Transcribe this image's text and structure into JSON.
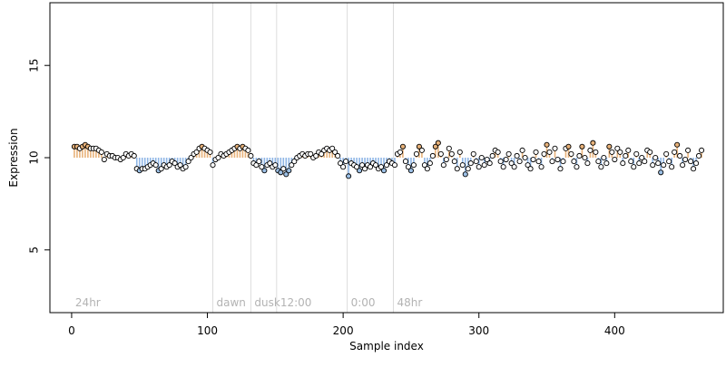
{
  "chart_data": {
    "type": "scatter",
    "title": "",
    "xlabel": "Sample index",
    "ylabel": "Expression",
    "xlim": [
      -16,
      480
    ],
    "ylim": [
      1.6,
      18.4
    ],
    "x_ticks": [
      0,
      100,
      200,
      300,
      400
    ],
    "y_ticks": [
      5,
      10,
      15
    ],
    "grid": false,
    "colors": {
      "point_fill_default": "#ffffff",
      "point_fill_high": "#e8b27a",
      "point_fill_low": "#9cc0e6",
      "deviation_above": "#e8b27a",
      "deviation_below": "#8fb6e6",
      "phase_line": "#dcdcdc",
      "phase_label": "#b3b3b3"
    },
    "phase_markers": [
      {
        "x": 0,
        "label": "24hr"
      },
      {
        "x": 104,
        "label": "dawn"
      },
      {
        "x": 132,
        "label": "dusk"
      },
      {
        "x": 151,
        "label": "12:00"
      },
      {
        "x": 203,
        "label": "0:00"
      },
      {
        "x": 237,
        "label": "48hr"
      }
    ],
    "reference_y": 10,
    "series": [
      {
        "points": [
          [
            2,
            10.6
          ],
          [
            4,
            10.6
          ],
          [
            6,
            10.5
          ],
          [
            8,
            10.6
          ],
          [
            10,
            10.7
          ],
          [
            12,
            10.6
          ],
          [
            14,
            10.5
          ],
          [
            16,
            10.5
          ],
          [
            18,
            10.5
          ],
          [
            20,
            10.4
          ],
          [
            22,
            10.3
          ],
          [
            24,
            9.9
          ],
          [
            26,
            10.2
          ],
          [
            28,
            10.1
          ],
          [
            30,
            10.1
          ],
          [
            32,
            10.0
          ],
          [
            34,
            10.0
          ],
          [
            36,
            9.9
          ],
          [
            38,
            10.0
          ],
          [
            40,
            10.2
          ],
          [
            42,
            10.1
          ],
          [
            44,
            10.2
          ],
          [
            46,
            10.1
          ],
          [
            48,
            9.4
          ],
          [
            50,
            9.3
          ],
          [
            52,
            9.4
          ],
          [
            54,
            9.4
          ],
          [
            56,
            9.5
          ],
          [
            58,
            9.6
          ],
          [
            60,
            9.7
          ],
          [
            62,
            9.6
          ],
          [
            64,
            9.3
          ],
          [
            66,
            9.4
          ],
          [
            68,
            9.6
          ],
          [
            70,
            9.5
          ],
          [
            72,
            9.6
          ],
          [
            74,
            9.8
          ],
          [
            76,
            9.7
          ],
          [
            78,
            9.5
          ],
          [
            80,
            9.6
          ],
          [
            82,
            9.4
          ],
          [
            84,
            9.5
          ],
          [
            86,
            9.8
          ],
          [
            88,
            10.0
          ],
          [
            90,
            10.2
          ],
          [
            92,
            10.3
          ],
          [
            94,
            10.5
          ],
          [
            96,
            10.6
          ],
          [
            98,
            10.5
          ],
          [
            100,
            10.4
          ],
          [
            102,
            10.3
          ],
          [
            104,
            9.6
          ],
          [
            106,
            9.9
          ],
          [
            108,
            10.0
          ],
          [
            110,
            10.2
          ],
          [
            112,
            10.1
          ],
          [
            114,
            10.2
          ],
          [
            116,
            10.3
          ],
          [
            118,
            10.4
          ],
          [
            120,
            10.5
          ],
          [
            122,
            10.6
          ],
          [
            124,
            10.5
          ],
          [
            126,
            10.6
          ],
          [
            128,
            10.5
          ],
          [
            130,
            10.4
          ],
          [
            132,
            10.1
          ],
          [
            134,
            9.7
          ],
          [
            136,
            9.6
          ],
          [
            138,
            9.8
          ],
          [
            140,
            9.5
          ],
          [
            142,
            9.3
          ],
          [
            144,
            9.6
          ],
          [
            146,
            9.7
          ],
          [
            148,
            9.5
          ],
          [
            150,
            9.6
          ],
          [
            152,
            9.3
          ],
          [
            154,
            9.2
          ],
          [
            156,
            9.4
          ],
          [
            158,
            9.1
          ],
          [
            160,
            9.3
          ],
          [
            162,
            9.6
          ],
          [
            164,
            9.8
          ],
          [
            166,
            10.0
          ],
          [
            168,
            10.1
          ],
          [
            170,
            10.2
          ],
          [
            172,
            10.1
          ],
          [
            174,
            10.2
          ],
          [
            176,
            10.2
          ],
          [
            178,
            10.0
          ],
          [
            180,
            10.1
          ],
          [
            182,
            10.3
          ],
          [
            184,
            10.2
          ],
          [
            186,
            10.4
          ],
          [
            188,
            10.5
          ],
          [
            190,
            10.4
          ],
          [
            192,
            10.5
          ],
          [
            194,
            10.3
          ],
          [
            196,
            10.1
          ],
          [
            198,
            9.7
          ],
          [
            200,
            9.5
          ],
          [
            202,
            9.8
          ],
          [
            204,
            9.0
          ],
          [
            206,
            9.7
          ],
          [
            208,
            9.6
          ],
          [
            210,
            9.5
          ],
          [
            212,
            9.3
          ],
          [
            214,
            9.6
          ],
          [
            216,
            9.4
          ],
          [
            218,
            9.6
          ],
          [
            220,
            9.5
          ],
          [
            222,
            9.7
          ],
          [
            224,
            9.6
          ],
          [
            226,
            9.4
          ],
          [
            228,
            9.5
          ],
          [
            230,
            9.3
          ],
          [
            232,
            9.6
          ],
          [
            234,
            9.8
          ],
          [
            236,
            9.7
          ],
          [
            238,
            9.6
          ],
          [
            240,
            10.2
          ],
          [
            242,
            10.3
          ],
          [
            244,
            10.6
          ],
          [
            246,
            9.8
          ],
          [
            248,
            9.5
          ],
          [
            250,
            9.3
          ],
          [
            252,
            9.6
          ],
          [
            254,
            10.2
          ],
          [
            256,
            10.6
          ],
          [
            258,
            10.4
          ],
          [
            260,
            9.6
          ],
          [
            262,
            9.4
          ],
          [
            264,
            9.7
          ],
          [
            266,
            10.1
          ],
          [
            268,
            10.6
          ],
          [
            270,
            10.8
          ],
          [
            272,
            10.2
          ],
          [
            274,
            9.6
          ],
          [
            276,
            9.9
          ],
          [
            278,
            10.5
          ],
          [
            280,
            10.2
          ],
          [
            282,
            9.8
          ],
          [
            284,
            9.4
          ],
          [
            286,
            10.3
          ],
          [
            288,
            9.6
          ],
          [
            290,
            9.1
          ],
          [
            292,
            9.4
          ],
          [
            294,
            9.7
          ],
          [
            296,
            10.2
          ],
          [
            298,
            9.8
          ],
          [
            300,
            9.5
          ],
          [
            302,
            10.0
          ],
          [
            304,
            9.6
          ],
          [
            306,
            9.9
          ],
          [
            308,
            9.7
          ],
          [
            310,
            10.1
          ],
          [
            312,
            10.4
          ],
          [
            314,
            10.3
          ],
          [
            316,
            9.8
          ],
          [
            318,
            9.5
          ],
          [
            320,
            9.9
          ],
          [
            322,
            10.2
          ],
          [
            324,
            9.7
          ],
          [
            326,
            9.5
          ],
          [
            328,
            10.1
          ],
          [
            330,
            9.8
          ],
          [
            332,
            10.4
          ],
          [
            334,
            10.0
          ],
          [
            336,
            9.6
          ],
          [
            338,
            9.4
          ],
          [
            340,
            9.9
          ],
          [
            342,
            10.3
          ],
          [
            344,
            9.8
          ],
          [
            346,
            9.5
          ],
          [
            348,
            10.2
          ],
          [
            350,
            10.7
          ],
          [
            352,
            10.3
          ],
          [
            354,
            9.8
          ],
          [
            356,
            10.5
          ],
          [
            358,
            9.9
          ],
          [
            360,
            9.4
          ],
          [
            362,
            9.8
          ],
          [
            364,
            10.5
          ],
          [
            366,
            10.6
          ],
          [
            368,
            10.2
          ],
          [
            370,
            9.8
          ],
          [
            372,
            9.5
          ],
          [
            374,
            10.1
          ],
          [
            376,
            10.6
          ],
          [
            378,
            10.0
          ],
          [
            380,
            9.7
          ],
          [
            382,
            10.4
          ],
          [
            384,
            10.8
          ],
          [
            386,
            10.3
          ],
          [
            388,
            9.8
          ],
          [
            390,
            9.5
          ],
          [
            392,
            10.0
          ],
          [
            394,
            9.7
          ],
          [
            396,
            10.6
          ],
          [
            398,
            10.3
          ],
          [
            400,
            9.9
          ],
          [
            402,
            10.5
          ],
          [
            404,
            10.3
          ],
          [
            406,
            9.7
          ],
          [
            408,
            10.1
          ],
          [
            410,
            10.4
          ],
          [
            412,
            9.8
          ],
          [
            414,
            9.5
          ],
          [
            416,
            10.2
          ],
          [
            418,
            9.7
          ],
          [
            420,
            10.0
          ],
          [
            422,
            9.8
          ],
          [
            424,
            10.4
          ],
          [
            426,
            10.3
          ],
          [
            428,
            9.6
          ],
          [
            430,
            10.0
          ],
          [
            432,
            9.7
          ],
          [
            434,
            9.2
          ],
          [
            436,
            9.6
          ],
          [
            438,
            10.2
          ],
          [
            440,
            9.8
          ],
          [
            442,
            9.5
          ],
          [
            444,
            10.3
          ],
          [
            446,
            10.7
          ],
          [
            448,
            10.1
          ],
          [
            450,
            9.6
          ],
          [
            452,
            9.9
          ],
          [
            454,
            10.4
          ],
          [
            456,
            9.8
          ],
          [
            458,
            9.4
          ],
          [
            460,
            9.7
          ],
          [
            462,
            10.1
          ],
          [
            464,
            10.4
          ]
        ]
      }
    ]
  }
}
